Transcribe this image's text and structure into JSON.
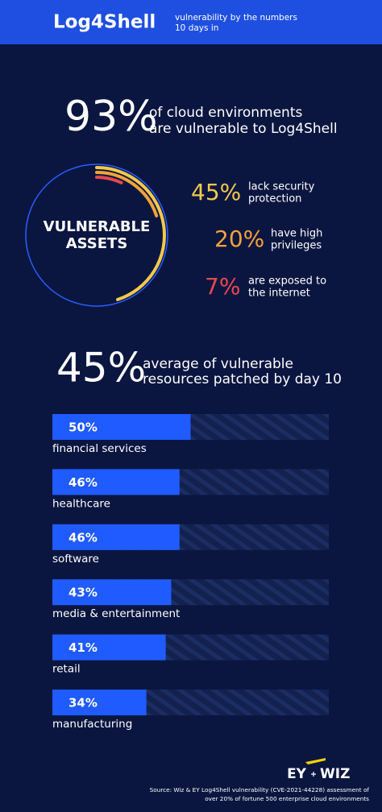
{
  "header": {
    "title": "Log4Shell",
    "subtitle": [
      "vulnerability by the numbers",
      "10 days in"
    ]
  },
  "headline": {
    "value_label": "93%",
    "text": [
      "of cloud environments",
      "are vulnerable to Log4Shell"
    ]
  },
  "headline2": {
    "value_label": "45%",
    "text": [
      "average of vulnerable",
      "resources patched by day 10"
    ]
  },
  "chart_data": [
    {
      "type": "ring",
      "title": [
        "VULNERABLE",
        "ASSETS"
      ],
      "categories": [
        [
          "lack security",
          "protection"
        ],
        [
          "have high",
          "privileges"
        ],
        [
          "are exposed to",
          "the internet"
        ]
      ],
      "values": [
        45,
        20,
        7
      ],
      "value_labels": [
        "45%",
        "20%",
        "7%"
      ],
      "colors": [
        "#f2c94c",
        "#f2a33a",
        "#e5484d"
      ]
    },
    {
      "type": "bar",
      "orientation": "horizontal",
      "categories": [
        "financial services",
        "healthcare",
        "software",
        "media & entertainment",
        "retail",
        "manufacturing"
      ],
      "values": [
        50,
        46,
        46,
        43,
        41,
        34
      ],
      "value_labels": [
        "50%",
        "46%",
        "46%",
        "43%",
        "41%",
        "34%"
      ],
      "xlim": [
        0,
        100
      ],
      "color": "#1f5bff"
    }
  ],
  "footer": {
    "logos": [
      "EY",
      "WIZ"
    ],
    "source": [
      "Source: Wiz & EY Log4Shell vulnerability (CVE-2021-44228) assessment of",
      "over 20% of fortune 500 enterprise cloud environments"
    ]
  }
}
